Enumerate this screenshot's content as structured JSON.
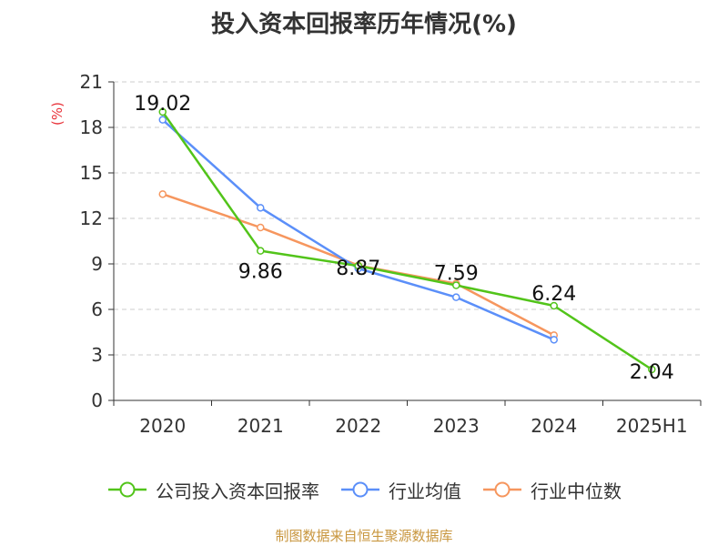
{
  "title": "投入资本回报率历年情况(%)",
  "source": "制图数据来自恒生聚源数据库",
  "chart_data": {
    "type": "line",
    "title": "投入资本回报率历年情况(%)",
    "ylabel": "(%)",
    "ylim": [
      0,
      21
    ],
    "yticks": [
      0,
      3,
      6,
      9,
      12,
      15,
      18,
      21
    ],
    "categories": [
      "2020",
      "2021",
      "2022",
      "2023",
      "2024",
      "2025H1"
    ],
    "grid": true,
    "legend_position": "bottom",
    "series": [
      {
        "name": "公司投入资本回报率",
        "color": "#52c41a",
        "values": [
          19.02,
          9.86,
          8.87,
          7.59,
          6.24,
          2.04
        ],
        "labels": [
          "19.02",
          "9.86",
          "8.87",
          "7.59",
          "6.24",
          "2.04"
        ]
      },
      {
        "name": "行业均值",
        "color": "#5b8ff9",
        "values": [
          18.5,
          12.7,
          8.7,
          6.8,
          4.0,
          null
        ]
      },
      {
        "name": "行业中位数",
        "color": "#f6965e",
        "values": [
          13.6,
          11.4,
          8.9,
          7.7,
          4.3,
          null
        ]
      }
    ]
  }
}
